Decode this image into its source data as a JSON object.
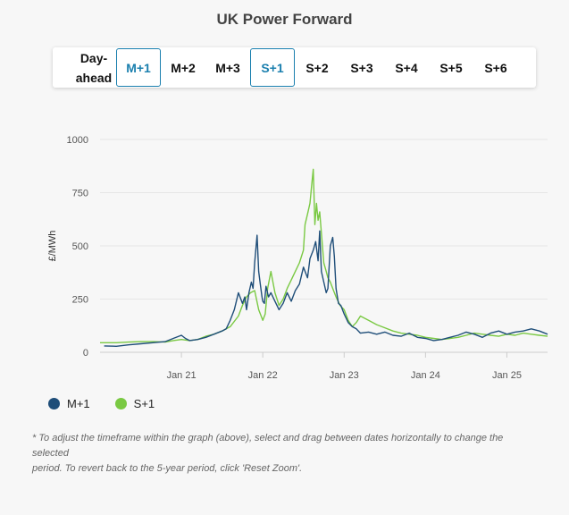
{
  "title": "UK Power Forward",
  "toolbar": {
    "buttons": [
      {
        "label": "M+1",
        "active": true
      },
      {
        "label": "M+2",
        "active": false
      },
      {
        "label": "M+3",
        "active": false
      },
      {
        "label": "S+1",
        "active": true
      },
      {
        "label": "S+2",
        "active": false
      },
      {
        "label": "S+3",
        "active": false
      },
      {
        "label": "S+4",
        "active": false
      },
      {
        "label": "S+5",
        "active": false
      },
      {
        "label": "S+6",
        "active": false
      }
    ],
    "dayahead": {
      "line1": "Day-",
      "line2": "ahead"
    }
  },
  "colors": {
    "m1": "#1f4e79",
    "s1": "#7ac943",
    "active_border": "#1a7fae",
    "grid": "#e6e6e6"
  },
  "chart_data": {
    "type": "line",
    "ylabel": "£/MWh",
    "ylim": [
      0,
      1000
    ],
    "yticks": [
      "0",
      "250",
      "500",
      "750",
      "1000"
    ],
    "ytick_values": [
      0,
      250,
      500,
      750,
      1000
    ],
    "xlim": [
      2020.0,
      2025.5
    ],
    "xticks": [
      {
        "label": "Jan 21",
        "value": 2021
      },
      {
        "label": "Jan 22",
        "value": 2022
      },
      {
        "label": "Jan 23",
        "value": 2023
      },
      {
        "label": "Jan 24",
        "value": 2024
      },
      {
        "label": "Jan 25",
        "value": 2025
      }
    ],
    "grid": true,
    "legend": "bottom-left",
    "series": [
      {
        "name": "M+1",
        "color": "#1f4e79",
        "x": [
          2020.05,
          2020.2,
          2020.35,
          2020.5,
          2020.65,
          2020.8,
          2020.9,
          2021.0,
          2021.05,
          2021.1,
          2021.2,
          2021.3,
          2021.4,
          2021.5,
          2021.55,
          2021.6,
          2021.65,
          2021.7,
          2021.75,
          2021.78,
          2021.8,
          2021.83,
          2021.86,
          2021.88,
          2021.9,
          2021.93,
          2021.95,
          2021.97,
          2021.99,
          2022.0,
          2022.02,
          2022.04,
          2022.07,
          2022.1,
          2022.15,
          2022.2,
          2022.25,
          2022.3,
          2022.35,
          2022.4,
          2022.45,
          2022.5,
          2022.55,
          2022.58,
          2022.62,
          2022.65,
          2022.68,
          2022.7,
          2022.72,
          2022.75,
          2022.78,
          2022.8,
          2022.83,
          2022.86,
          2022.88,
          2022.9,
          2022.93,
          2022.96,
          2023.0,
          2023.05,
          2023.1,
          2023.15,
          2023.2,
          2023.3,
          2023.4,
          2023.5,
          2023.6,
          2023.7,
          2023.8,
          2023.9,
          2024.0,
          2024.1,
          2024.2,
          2024.3,
          2024.4,
          2024.5,
          2024.6,
          2024.7,
          2024.8,
          2024.9,
          2025.0,
          2025.1,
          2025.2,
          2025.3,
          2025.4,
          2025.5
        ],
        "y": [
          30,
          28,
          35,
          40,
          45,
          50,
          65,
          80,
          65,
          55,
          60,
          70,
          85,
          100,
          110,
          150,
          200,
          280,
          230,
          260,
          200,
          280,
          330,
          300,
          420,
          550,
          380,
          320,
          260,
          240,
          230,
          310,
          260,
          280,
          240,
          200,
          230,
          280,
          240,
          290,
          320,
          400,
          350,
          440,
          480,
          520,
          430,
          570,
          380,
          330,
          280,
          300,
          500,
          540,
          450,
          300,
          230,
          220,
          180,
          140,
          120,
          110,
          90,
          95,
          85,
          95,
          80,
          75,
          90,
          70,
          65,
          55,
          60,
          70,
          80,
          95,
          85,
          70,
          90,
          100,
          85,
          95,
          100,
          110,
          100,
          85
        ]
      },
      {
        "name": "S+1",
        "color": "#7ac943",
        "x": [
          2020.0,
          2020.2,
          2020.35,
          2020.5,
          2020.65,
          2020.8,
          2020.9,
          2021.0,
          2021.1,
          2021.2,
          2021.3,
          2021.4,
          2021.5,
          2021.6,
          2021.7,
          2021.75,
          2021.8,
          2021.85,
          2021.9,
          2021.95,
          2022.0,
          2022.03,
          2022.06,
          2022.1,
          2022.15,
          2022.2,
          2022.25,
          2022.3,
          2022.35,
          2022.4,
          2022.45,
          2022.5,
          2022.52,
          2022.55,
          2022.58,
          2022.6,
          2022.62,
          2022.64,
          2022.66,
          2022.68,
          2022.7,
          2022.72,
          2022.75,
          2022.78,
          2022.8,
          2022.83,
          2022.86,
          2022.9,
          2022.95,
          2023.0,
          2023.05,
          2023.1,
          2023.15,
          2023.2,
          2023.3,
          2023.4,
          2023.5,
          2023.6,
          2023.7,
          2023.8,
          2023.9,
          2024.0,
          2024.1,
          2024.2,
          2024.3,
          2024.4,
          2024.5,
          2024.6,
          2024.7,
          2024.8,
          2024.9,
          2025.0,
          2025.1,
          2025.2,
          2025.3,
          2025.4,
          2025.5
        ],
        "y": [
          45,
          45,
          48,
          50,
          50,
          48,
          55,
          60,
          55,
          60,
          75,
          85,
          100,
          120,
          170,
          220,
          260,
          280,
          290,
          200,
          150,
          180,
          300,
          380,
          280,
          220,
          250,
          300,
          340,
          380,
          420,
          480,
          600,
          650,
          700,
          780,
          860,
          600,
          700,
          620,
          660,
          560,
          420,
          380,
          350,
          330,
          300,
          260,
          220,
          200,
          150,
          120,
          140,
          170,
          150,
          130,
          115,
          100,
          90,
          85,
          80,
          70,
          65,
          60,
          65,
          70,
          80,
          90,
          85,
          80,
          75,
          85,
          80,
          90,
          85,
          80,
          75
        ]
      }
    ]
  },
  "legend": {
    "items": [
      {
        "label": "M+1"
      },
      {
        "label": "S+1"
      }
    ]
  },
  "footnote": {
    "line1": "* To adjust the timeframe within the graph (above), select and drag between dates horizontally to change the selected",
    "line2": "period. To revert back to the 5-year period, click 'Reset Zoom'."
  }
}
